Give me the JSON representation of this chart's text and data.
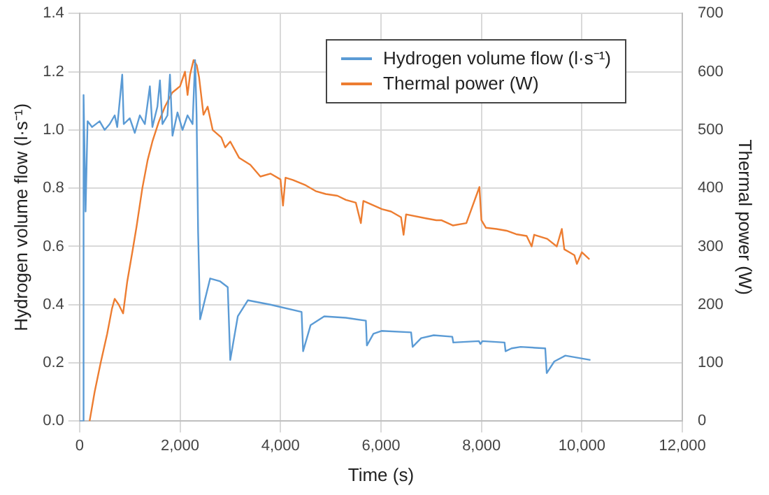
{
  "chart_data": {
    "type": "line",
    "xlabel": "Time (s)",
    "ylabel": "Hydrogen volume flow (l·s⁻¹)",
    "y2label": "Thermal power (W)",
    "xlim": [
      0,
      12000
    ],
    "xticks": [
      0,
      {
        "value": 2000,
        "label": "2,000"
      },
      {
        "value": 4000,
        "label": "4,000"
      },
      {
        "value": 6000,
        "label": "6,000"
      },
      {
        "value": 8000,
        "label": "8,000"
      },
      {
        "value": 10000,
        "label": "10,000"
      },
      {
        "value": 12000,
        "label": "12,000"
      }
    ],
    "ylim": [
      0,
      1.4
    ],
    "yticks": [
      {
        "value": 0,
        "label": "0.0"
      },
      {
        "value": 0.2,
        "label": "0.2"
      },
      {
        "value": 0.4,
        "label": "0.4"
      },
      {
        "value": 0.6,
        "label": "0.6"
      },
      {
        "value": 0.8,
        "label": "0.8"
      },
      {
        "value": 1,
        "label": "1.0"
      },
      {
        "value": 1.2,
        "label": "1.2"
      },
      {
        "value": 1.4,
        "label": "1.4"
      }
    ],
    "y2lim": [
      0,
      700
    ],
    "y2ticks": [
      0,
      100,
      200,
      300,
      400,
      500,
      600,
      700
    ],
    "grid": true,
    "legend": "top right",
    "marker": "none",
    "line_style": "solid",
    "series": [
      {
        "name": "Hydrogen volume flow (l·s⁻¹)",
        "color": "#5b9bd5",
        "x": [
          0,
          60,
          80,
          120,
          160,
          250,
          400,
          500,
          600,
          700,
          750,
          850,
          880,
          1000,
          1100,
          1200,
          1300,
          1400,
          1450,
          1550,
          1600,
          1650,
          1750,
          1800,
          1850,
          1950,
          2050,
          2150,
          2250,
          2300,
          2330,
          2360,
          2400,
          2600,
          2800,
          2950,
          3000,
          3150,
          3350,
          3800,
          4420,
          4450,
          4600,
          4870,
          5300,
          5700,
          5720,
          5850,
          6010,
          6600,
          6630,
          6800,
          7050,
          7420,
          7440,
          7950,
          7980,
          8020,
          8460,
          8480,
          8600,
          8780,
          9270,
          9300,
          9450,
          9670,
          10170
        ],
        "values": [
          0,
          0,
          1.12,
          0.72,
          1.03,
          1.01,
          1.03,
          1.0,
          1.02,
          1.05,
          1.01,
          1.19,
          1.02,
          1.04,
          0.99,
          1.05,
          1.02,
          1.15,
          1.01,
          1.08,
          1.17,
          1.02,
          1.05,
          1.19,
          0.98,
          1.06,
          1.0,
          1.05,
          1.02,
          1.24,
          1.05,
          0.65,
          0.35,
          0.49,
          0.48,
          0.46,
          0.21,
          0.36,
          0.415,
          0.4,
          0.375,
          0.24,
          0.33,
          0.36,
          0.355,
          0.345,
          0.26,
          0.3,
          0.31,
          0.305,
          0.255,
          0.285,
          0.295,
          0.29,
          0.27,
          0.275,
          0.265,
          0.275,
          0.27,
          0.24,
          0.25,
          0.255,
          0.25,
          0.165,
          0.205,
          0.225,
          0.21
        ]
      },
      {
        "name": "Thermal power (W)",
        "color": "#ed7d31",
        "axis": "y2",
        "x": [
          200,
          300,
          420,
          550,
          645,
          700,
          780,
          867,
          950,
          1050,
          1133,
          1250,
          1355,
          1450,
          1578,
          1700,
          1845,
          2000,
          2100,
          2150,
          2200,
          2270,
          2333,
          2380,
          2467,
          2550,
          2650,
          2822,
          2900,
          3000,
          3178,
          3400,
          3600,
          3800,
          4000,
          4050,
          4100,
          4245,
          4500,
          4700,
          4900,
          5133,
          5300,
          5500,
          5600,
          5650,
          6020,
          6200,
          6400,
          6450,
          6500,
          6910,
          7100,
          7200,
          7430,
          7700,
          7960,
          8000,
          8090,
          8300,
          8500,
          8690,
          8900,
          9000,
          9050,
          9310,
          9500,
          9600,
          9650,
          9750,
          9850,
          9900,
          10000,
          10150
        ],
        "values": [
          0,
          50,
          100,
          150,
          193,
          210,
          200,
          185,
          240,
          290,
          333,
          400,
          448,
          480,
          514,
          540,
          564,
          575,
          600,
          560,
          595,
          620,
          611,
          590,
          526,
          540,
          500,
          487,
          470,
          480,
          452,
          440,
          420,
          425,
          415,
          370,
          418,
          414,
          405,
          395,
          390,
          387,
          380,
          375,
          340,
          378,
          364,
          360,
          350,
          320,
          355,
          348,
          345,
          345,
          336,
          340,
          402,
          345,
          332,
          330,
          327,
          321,
          318,
          300,
          320,
          313,
          300,
          330,
          295,
          290,
          285,
          270,
          290,
          278
        ]
      }
    ]
  }
}
